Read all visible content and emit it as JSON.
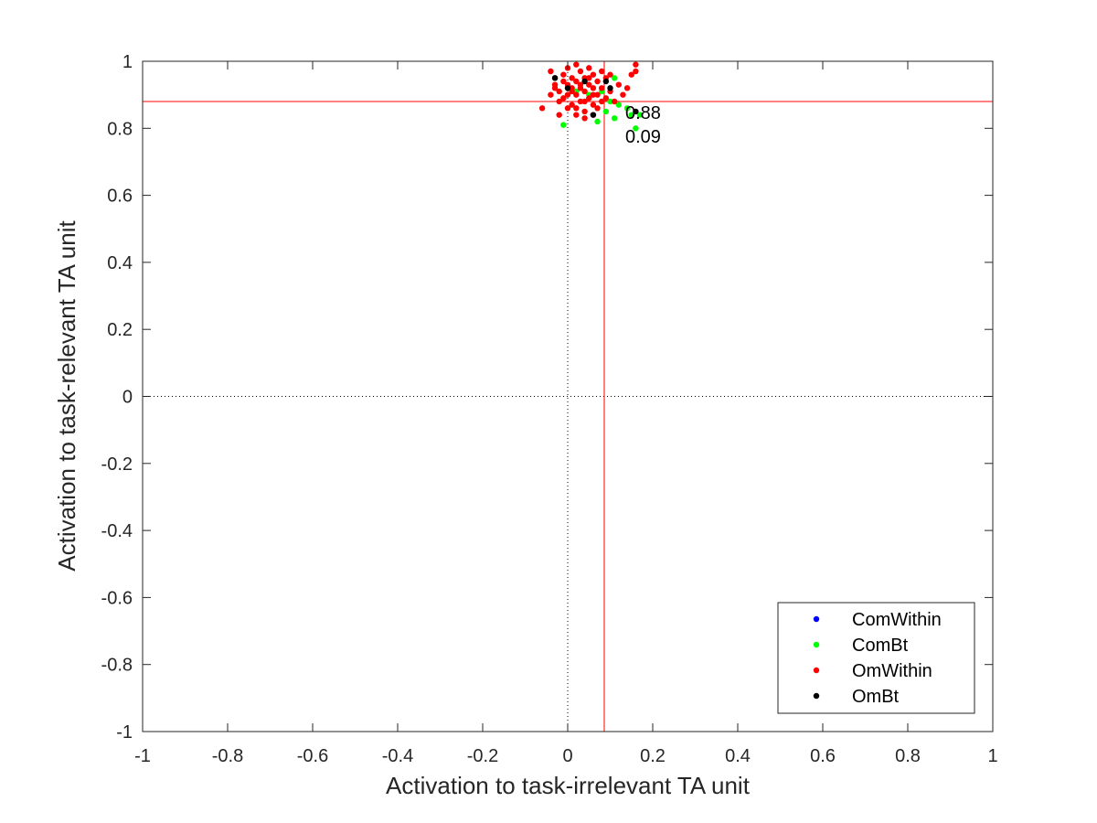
{
  "chart_data": {
    "type": "scatter",
    "xlabel": "Activation to task-irrelevant TA unit",
    "ylabel": "Activation to task-relevant TA unit",
    "xlim": [
      -1,
      1
    ],
    "ylim": [
      -1,
      1
    ],
    "xticks": [
      "-1",
      "-0.8",
      "-0.6",
      "-0.4",
      "-0.2",
      "0",
      "0.2",
      "0.4",
      "0.6",
      "0.8",
      "1"
    ],
    "yticks": [
      "-1",
      "-0.8",
      "-0.6",
      "-0.4",
      "-0.2",
      "0",
      "0.2",
      "0.4",
      "0.6",
      "0.8",
      "1"
    ],
    "grid": false,
    "legend_position": "bottom-right",
    "reference_lines": {
      "x": 0.086,
      "y": 0.88,
      "color": "#ff0000"
    },
    "zero_lines": {
      "x": 0,
      "y": 0,
      "style": "dotted"
    },
    "annotations": [
      "0.88",
      "0.09"
    ],
    "series": [
      {
        "name": "ComWithin",
        "color": "#0000ff",
        "points": []
      },
      {
        "name": "ComBt",
        "color": "#00ff00",
        "points": [
          [
            -0.01,
            0.81
          ],
          [
            0.0,
            0.92
          ],
          [
            0.02,
            0.91
          ],
          [
            0.05,
            0.9
          ],
          [
            0.07,
            0.82
          ],
          [
            0.09,
            0.85
          ],
          [
            0.1,
            0.88
          ],
          [
            0.11,
            0.83
          ],
          [
            0.11,
            0.95
          ],
          [
            0.12,
            0.87
          ],
          [
            0.14,
            0.86
          ],
          [
            0.15,
            0.84
          ],
          [
            0.16,
            0.8
          ],
          [
            0.17,
            0.84
          ],
          [
            0.08,
            0.91
          ]
        ]
      },
      {
        "name": "OmWithin",
        "color": "#ff0000",
        "points": [
          [
            -0.06,
            0.86
          ],
          [
            -0.04,
            0.9
          ],
          [
            -0.04,
            0.97
          ],
          [
            -0.03,
            0.93
          ],
          [
            -0.03,
            0.95
          ],
          [
            -0.02,
            0.88
          ],
          [
            -0.02,
            0.91
          ],
          [
            -0.01,
            0.94
          ],
          [
            -0.01,
            0.96
          ],
          [
            -0.01,
            0.89
          ],
          [
            0.0,
            0.98
          ],
          [
            0.0,
            0.93
          ],
          [
            0.0,
            0.9
          ],
          [
            0.01,
            0.95
          ],
          [
            0.01,
            0.87
          ],
          [
            0.01,
            0.92
          ],
          [
            0.02,
            0.99
          ],
          [
            0.02,
            0.94
          ],
          [
            0.02,
            0.9
          ],
          [
            0.02,
            0.86
          ],
          [
            0.03,
            0.97
          ],
          [
            0.03,
            0.92
          ],
          [
            0.03,
            0.88
          ],
          [
            0.04,
            0.95
          ],
          [
            0.04,
            0.91
          ],
          [
            0.04,
            0.85
          ],
          [
            0.05,
            0.98
          ],
          [
            0.05,
            0.93
          ],
          [
            0.05,
            0.89
          ],
          [
            0.06,
            0.96
          ],
          [
            0.06,
            0.92
          ],
          [
            0.06,
            0.87
          ],
          [
            0.07,
            0.94
          ],
          [
            0.07,
            0.9
          ],
          [
            0.07,
            0.86
          ],
          [
            0.08,
            0.97
          ],
          [
            0.08,
            0.92
          ],
          [
            0.09,
            0.89
          ],
          [
            0.09,
            0.95
          ],
          [
            0.1,
            0.91
          ],
          [
            0.1,
            0.96
          ],
          [
            0.11,
            0.88
          ],
          [
            0.12,
            0.93
          ],
          [
            0.13,
            0.9
          ],
          [
            0.14,
            0.92
          ],
          [
            0.15,
            0.96
          ],
          [
            0.16,
            0.97
          ],
          [
            0.16,
            0.99
          ],
          [
            -0.02,
            0.84
          ],
          [
            0.02,
            0.84
          ],
          [
            0.04,
            0.83
          ],
          [
            0.06,
            0.84
          ],
          [
            0.0,
            0.86
          ],
          [
            0.03,
            0.93
          ],
          [
            0.05,
            0.95
          ],
          [
            -0.03,
            0.92
          ],
          [
            0.01,
            0.91
          ],
          [
            0.08,
            0.88
          ],
          [
            0.06,
            0.9
          ],
          [
            0.04,
            0.88
          ]
        ]
      },
      {
        "name": "OmBt",
        "color": "#000000",
        "points": [
          [
            -0.03,
            0.95
          ],
          [
            0.0,
            0.92
          ],
          [
            0.04,
            0.94
          ],
          [
            0.06,
            0.84
          ],
          [
            0.09,
            0.94
          ],
          [
            0.1,
            0.92
          ],
          [
            0.16,
            0.85
          ]
        ]
      }
    ]
  }
}
